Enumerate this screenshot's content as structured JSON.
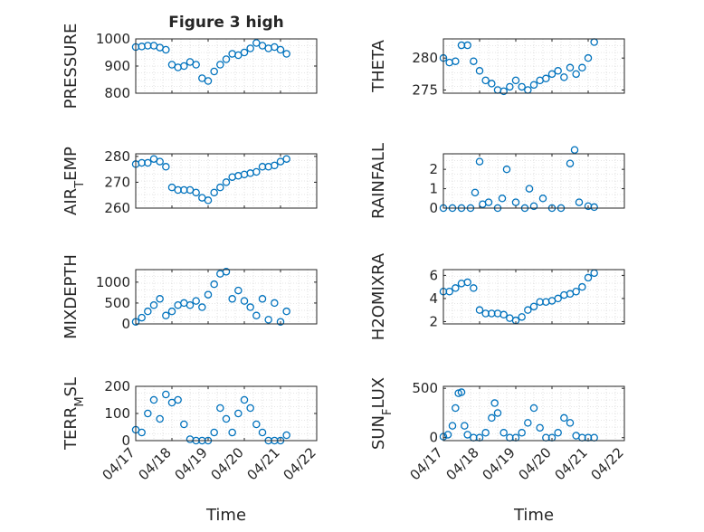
{
  "figure": {
    "title": "Figure 3 high"
  },
  "colors": {
    "marker": "#0072BD",
    "axes": "#262626",
    "grid": "#cccccc",
    "background": "#ffffff"
  },
  "chart_data": [
    {
      "type": "scatter",
      "title": "Figure 3 high",
      "ylabel": "PRESSURE",
      "xlabel": "",
      "xlim": [
        "04/17",
        "04/22"
      ],
      "ylim": [
        800,
        1000
      ],
      "yticks": [
        "800",
        "900",
        "1000"
      ],
      "x_ticklabels": [],
      "grid": true,
      "x": [
        "04/17 00:00",
        "04/17 04:00",
        "04/17 08:00",
        "04/17 12:00",
        "04/17 16:00",
        "04/17 20:00",
        "04/18 00:00",
        "04/18 04:00",
        "04/18 08:00",
        "04/18 12:00",
        "04/18 16:00",
        "04/18 20:00",
        "04/19 00:00",
        "04/19 04:00",
        "04/19 08:00",
        "04/19 12:00",
        "04/19 16:00",
        "04/19 20:00",
        "04/20 00:00",
        "04/20 04:00",
        "04/20 08:00",
        "04/20 12:00",
        "04/20 16:00",
        "04/20 20:00",
        "04/21 00:00",
        "04/21 04:00"
      ],
      "values": [
        970,
        972,
        975,
        975,
        968,
        960,
        905,
        895,
        900,
        915,
        905,
        855,
        845,
        880,
        905,
        925,
        945,
        940,
        950,
        965,
        985,
        975,
        965,
        970,
        960,
        945
      ]
    },
    {
      "type": "scatter",
      "ylabel": "THETA",
      "xlabel": "",
      "xlim": [
        "04/17",
        "04/22"
      ],
      "ylim": [
        274.5,
        283
      ],
      "yticks": [
        "275",
        "280"
      ],
      "x_ticklabels": [],
      "grid": true,
      "x": [
        "04/17 00:00",
        "04/17 04:00",
        "04/17 08:00",
        "04/17 12:00",
        "04/17 16:00",
        "04/17 20:00",
        "04/18 00:00",
        "04/18 04:00",
        "04/18 08:00",
        "04/18 12:00",
        "04/18 16:00",
        "04/18 20:00",
        "04/19 00:00",
        "04/19 04:00",
        "04/19 08:00",
        "04/19 12:00",
        "04/19 16:00",
        "04/19 20:00",
        "04/20 00:00",
        "04/20 04:00",
        "04/20 08:00",
        "04/20 12:00",
        "04/20 16:00",
        "04/20 20:00",
        "04/21 00:00",
        "04/21 04:00"
      ],
      "values": [
        280,
        279.3,
        279.5,
        282,
        282,
        279.5,
        278,
        276.5,
        276,
        275,
        274.8,
        275.5,
        276.5,
        275.5,
        275,
        275.8,
        276.5,
        276.8,
        277.5,
        278,
        277,
        278.5,
        277.5,
        278.5,
        280,
        282.5
      ]
    },
    {
      "type": "scatter",
      "ylabel": "AIR_TEMP",
      "xlabel": "",
      "xlim": [
        "04/17",
        "04/22"
      ],
      "ylim": [
        260,
        281
      ],
      "yticks": [
        "260",
        "270",
        "280"
      ],
      "x_ticklabels": [],
      "grid": true,
      "x": [
        "04/17 00:00",
        "04/17 04:00",
        "04/17 08:00",
        "04/17 12:00",
        "04/17 16:00",
        "04/17 20:00",
        "04/18 00:00",
        "04/18 04:00",
        "04/18 08:00",
        "04/18 12:00",
        "04/18 16:00",
        "04/18 20:00",
        "04/19 00:00",
        "04/19 04:00",
        "04/19 08:00",
        "04/19 12:00",
        "04/19 16:00",
        "04/19 20:00",
        "04/20 00:00",
        "04/20 04:00",
        "04/20 08:00",
        "04/20 12:00",
        "04/20 16:00",
        "04/20 20:00",
        "04/21 00:00",
        "04/21 04:00"
      ],
      "values": [
        277,
        277.5,
        277.5,
        279,
        278,
        276,
        268,
        267,
        267,
        267,
        266,
        264,
        263,
        266,
        268,
        270,
        272,
        272.5,
        273,
        273.5,
        274,
        276,
        276,
        276.5,
        278,
        279
      ]
    },
    {
      "type": "scatter",
      "ylabel": "RAINFALL",
      "xlabel": "",
      "xlim": [
        "04/17",
        "04/22"
      ],
      "ylim": [
        0,
        2.8
      ],
      "yticks": [
        "0",
        "1",
        "2"
      ],
      "x_ticklabels": [],
      "grid": true,
      "x": [
        "04/17 00:00",
        "04/17 06:00",
        "04/17 12:00",
        "04/17 18:00",
        "04/17 21:00",
        "04/18 00:00",
        "04/18 02:00",
        "04/18 06:00",
        "04/18 12:00",
        "04/18 15:00",
        "04/18 18:00",
        "04/19 00:00",
        "04/19 06:00",
        "04/19 09:00",
        "04/19 12:00",
        "04/19 18:00",
        "04/20 00:00",
        "04/20 06:00",
        "04/20 12:00",
        "04/20 15:00",
        "04/20 18:00",
        "04/21 00:00",
        "04/21 04:00"
      ],
      "values": [
        0,
        0,
        0,
        0,
        0.8,
        2.4,
        0.2,
        0.3,
        0,
        0.5,
        2.0,
        0.3,
        0,
        1.0,
        0.1,
        0.5,
        0,
        0,
        2.3,
        3.0,
        0.3,
        0.1,
        0.05
      ]
    },
    {
      "type": "scatter",
      "ylabel": "MIXDEPTH",
      "xlabel": "",
      "xlim": [
        "04/17",
        "04/22"
      ],
      "ylim": [
        0,
        1300
      ],
      "yticks": [
        "0",
        "500",
        "1000"
      ],
      "x_ticklabels": [],
      "grid": true,
      "x": [
        "04/17 00:00",
        "04/17 04:00",
        "04/17 08:00",
        "04/17 12:00",
        "04/17 16:00",
        "04/17 20:00",
        "04/18 00:00",
        "04/18 04:00",
        "04/18 08:00",
        "04/18 12:00",
        "04/18 16:00",
        "04/18 20:00",
        "04/19 00:00",
        "04/19 04:00",
        "04/19 08:00",
        "04/19 12:00",
        "04/19 16:00",
        "04/19 20:00",
        "04/20 00:00",
        "04/20 04:00",
        "04/20 08:00",
        "04/20 12:00",
        "04/20 16:00",
        "04/20 20:00",
        "04/21 00:00",
        "04/21 04:00"
      ],
      "values": [
        50,
        150,
        300,
        450,
        600,
        200,
        300,
        450,
        500,
        450,
        550,
        400,
        700,
        950,
        1200,
        1250,
        600,
        800,
        550,
        400,
        200,
        600,
        100,
        500,
        50,
        300
      ]
    },
    {
      "type": "scatter",
      "ylabel": "H2OMIXRA",
      "xlabel": "",
      "xlim": [
        "04/17",
        "04/22"
      ],
      "ylim": [
        1.8,
        6.5
      ],
      "yticks": [
        "2",
        "4",
        "6"
      ],
      "x_ticklabels": [],
      "grid": true,
      "x": [
        "04/17 00:00",
        "04/17 04:00",
        "04/17 08:00",
        "04/17 12:00",
        "04/17 16:00",
        "04/17 20:00",
        "04/18 00:00",
        "04/18 04:00",
        "04/18 08:00",
        "04/18 12:00",
        "04/18 16:00",
        "04/18 20:00",
        "04/19 00:00",
        "04/19 04:00",
        "04/19 08:00",
        "04/19 12:00",
        "04/19 16:00",
        "04/19 20:00",
        "04/20 00:00",
        "04/20 04:00",
        "04/20 08:00",
        "04/20 12:00",
        "04/20 16:00",
        "04/20 20:00",
        "04/21 00:00",
        "04/21 04:00"
      ],
      "values": [
        4.6,
        4.6,
        4.9,
        5.3,
        5.4,
        4.9,
        3.0,
        2.7,
        2.7,
        2.7,
        2.6,
        2.3,
        2.1,
        2.4,
        3.0,
        3.3,
        3.7,
        3.7,
        3.8,
        4.0,
        4.3,
        4.4,
        4.6,
        5.0,
        5.8,
        6.2
      ]
    },
    {
      "type": "scatter",
      "ylabel": "TERR_MSL",
      "xlabel": "Time",
      "xlim": [
        "04/17",
        "04/22"
      ],
      "ylim": [
        0,
        200
      ],
      "yticks": [
        "0",
        "100",
        "200"
      ],
      "x_ticklabels": [
        "04/17",
        "04/18",
        "04/19",
        "04/20",
        "04/21",
        "04/22"
      ],
      "grid": true,
      "x": [
        "04/17 00:00",
        "04/17 04:00",
        "04/17 08:00",
        "04/17 12:00",
        "04/17 16:00",
        "04/17 20:00",
        "04/18 00:00",
        "04/18 04:00",
        "04/18 08:00",
        "04/18 12:00",
        "04/18 16:00",
        "04/18 20:00",
        "04/19 00:00",
        "04/19 04:00",
        "04/19 08:00",
        "04/19 12:00",
        "04/19 16:00",
        "04/19 20:00",
        "04/20 00:00",
        "04/20 04:00",
        "04/20 08:00",
        "04/20 12:00",
        "04/20 16:00",
        "04/20 20:00",
        "04/21 00:00",
        "04/21 04:00"
      ],
      "values": [
        40,
        30,
        100,
        150,
        80,
        170,
        140,
        150,
        60,
        5,
        0,
        0,
        0,
        30,
        120,
        80,
        30,
        100,
        150,
        120,
        60,
        30,
        0,
        0,
        0,
        20
      ]
    },
    {
      "type": "scatter",
      "ylabel": "SUN_FLUX",
      "xlabel": "Time",
      "xlim": [
        "04/17",
        "04/22"
      ],
      "ylim": [
        -30,
        520
      ],
      "yticks": [
        "0",
        "500"
      ],
      "x_ticklabels": [
        "04/17",
        "04/18",
        "04/19",
        "04/20",
        "04/21",
        "04/22"
      ],
      "grid": true,
      "x": [
        "04/17 00:00",
        "04/17 03:00",
        "04/17 06:00",
        "04/17 08:00",
        "04/17 10:00",
        "04/17 12:00",
        "04/17 14:00",
        "04/17 16:00",
        "04/17 20:00",
        "04/18 00:00",
        "04/18 04:00",
        "04/18 08:00",
        "04/18 10:00",
        "04/18 12:00",
        "04/18 16:00",
        "04/18 20:00",
        "04/19 00:00",
        "04/19 04:00",
        "04/19 08:00",
        "04/19 12:00",
        "04/19 16:00",
        "04/19 20:00",
        "04/20 00:00",
        "04/20 04:00",
        "04/20 08:00",
        "04/20 12:00",
        "04/20 16:00",
        "04/20 20:00",
        "04/21 00:00",
        "04/21 04:00"
      ],
      "values": [
        10,
        30,
        120,
        300,
        450,
        460,
        120,
        30,
        0,
        0,
        50,
        200,
        350,
        250,
        50,
        0,
        0,
        50,
        150,
        300,
        100,
        0,
        0,
        50,
        200,
        150,
        20,
        0,
        0,
        0
      ]
    }
  ]
}
